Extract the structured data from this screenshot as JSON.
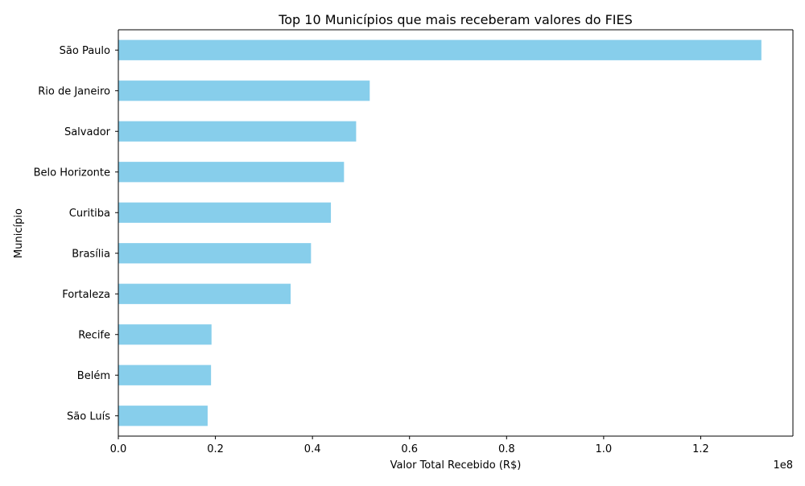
{
  "chart_data": {
    "type": "bar",
    "orientation": "horizontal",
    "title": "Top 10 Municípios que mais receberam valores do FIES",
    "xlabel": "Valor Total Recebido (R$)",
    "ylabel": "Município",
    "x_offset_label": "1e8",
    "xlim": [
      0,
      139000000
    ],
    "x_ticks": [
      0,
      20000000,
      40000000,
      60000000,
      80000000,
      100000000,
      120000000
    ],
    "x_tick_labels": [
      "0.0",
      "0.2",
      "0.4",
      "0.6",
      "0.8",
      "1.0",
      "1.2"
    ],
    "categories": [
      "São Paulo",
      "Rio de Janeiro",
      "Salvador",
      "Belo Horizonte",
      "Curitiba",
      "Brasília",
      "Fortaleza",
      "Recife",
      "Belém",
      "São Luís"
    ],
    "values": [
      132500000,
      51800000,
      49000000,
      46500000,
      43800000,
      39700000,
      35500000,
      19200000,
      19100000,
      18400000
    ],
    "bar_color": "#87ceeb",
    "grid": false,
    "legend": "none"
  }
}
